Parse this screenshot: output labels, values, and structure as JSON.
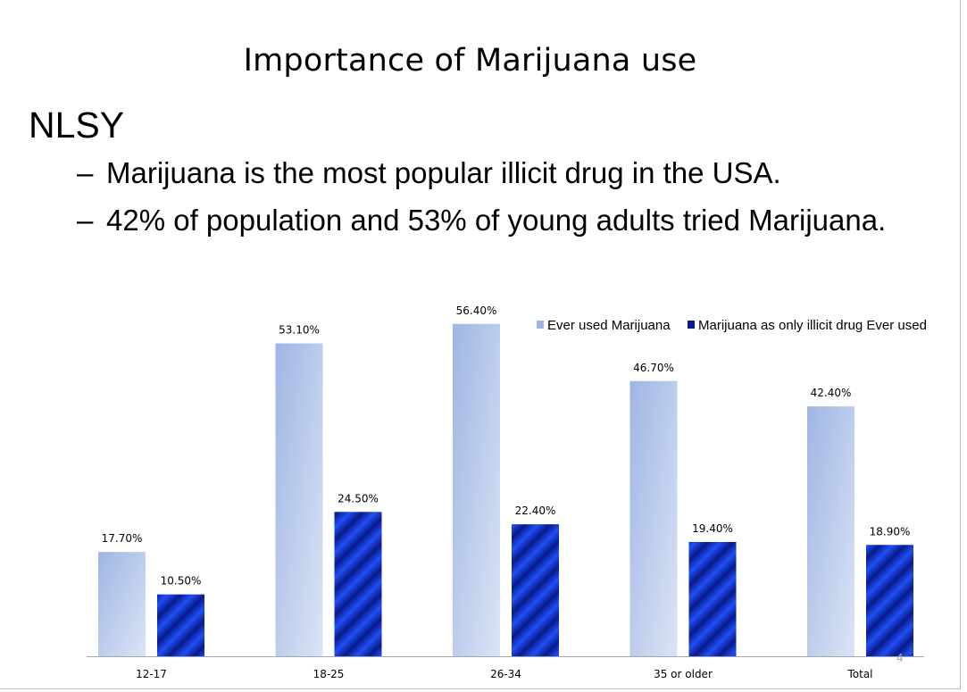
{
  "slide": {
    "title": "Importance of Marijuana use",
    "heading": "NLSY",
    "bullets": [
      "Marijuana is the most popular illicit drug in the USA.",
      "42% of population and 53% of young adults tried Marijuana."
    ],
    "bullet_marker": "–",
    "page_number": "4"
  },
  "colors": {
    "ever_used_light": "#dbe4f5",
    "ever_used_dark": "#9fb5e3",
    "only_drug_dark": "#0a1a8c",
    "only_drug_bright": "#1f4ff5",
    "axis": "#a6a6a6"
  },
  "chart_data": {
    "type": "bar",
    "title": "",
    "xlabel": "",
    "ylabel": "",
    "ylim": [
      0,
      70
    ],
    "grid": false,
    "legend_position": "top-right",
    "categories": [
      "12-17",
      "18-25",
      "26-34",
      "35 or older",
      "Total"
    ],
    "series": [
      {
        "name": "Ever used Marijuana",
        "values": [
          17.7,
          53.1,
          56.4,
          46.7,
          42.4
        ],
        "labels": [
          "17.70%",
          "53.10%",
          "56.40%",
          "46.70%",
          "42.40%"
        ]
      },
      {
        "name": "Marijuana as only illicit drug Ever used",
        "values": [
          10.5,
          24.5,
          22.4,
          19.4,
          18.9
        ],
        "labels": [
          "10.50%",
          "24.50%",
          "22.40%",
          "19.40%",
          "18.90%"
        ]
      }
    ]
  }
}
